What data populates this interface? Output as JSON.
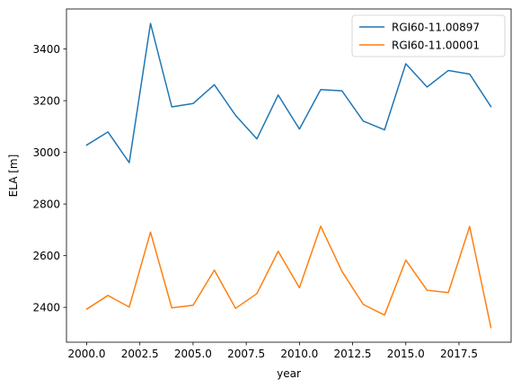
{
  "chart_data": {
    "type": "line",
    "title": "",
    "xlabel": "year",
    "ylabel": "ELA [m]",
    "xlim": [
      1999.05,
      2019.95
    ],
    "ylim": [
      2265,
      3555
    ],
    "x_ticks": [
      2000,
      2002.5,
      2005,
      2007.5,
      2010,
      2012.5,
      2015,
      2017.5
    ],
    "x_tick_labels": [
      "2000.0",
      "2002.5",
      "2005.0",
      "2007.5",
      "2010.0",
      "2012.5",
      "2015.0",
      "2017.5"
    ],
    "y_ticks": [
      2400,
      2600,
      2800,
      3000,
      3200,
      3400
    ],
    "y_tick_labels": [
      "2400",
      "2600",
      "2800",
      "3000",
      "3200",
      "3400"
    ],
    "grid": false,
    "legend_position": "top-right",
    "x": [
      2000,
      2001,
      2002,
      2003,
      2004,
      2005,
      2006,
      2007,
      2008,
      2009,
      2010,
      2011,
      2012,
      2013,
      2014,
      2015,
      2016,
      2017,
      2018,
      2019
    ],
    "series": [
      {
        "name": "RGI60-11.00897",
        "color": "#1f77b4",
        "values": [
          3028,
          3079,
          2960,
          3499,
          3176,
          3189,
          3262,
          3143,
          3052,
          3222,
          3090,
          3243,
          3238,
          3121,
          3087,
          3343,
          3253,
          3317,
          3303,
          3177
        ]
      },
      {
        "name": "RGI60-11.00001",
        "color": "#ff7f0e",
        "values": [
          2393,
          2446,
          2401,
          2691,
          2398,
          2408,
          2544,
          2396,
          2453,
          2617,
          2476,
          2714,
          2539,
          2411,
          2370,
          2583,
          2466,
          2457,
          2713,
          2322
        ]
      }
    ]
  }
}
